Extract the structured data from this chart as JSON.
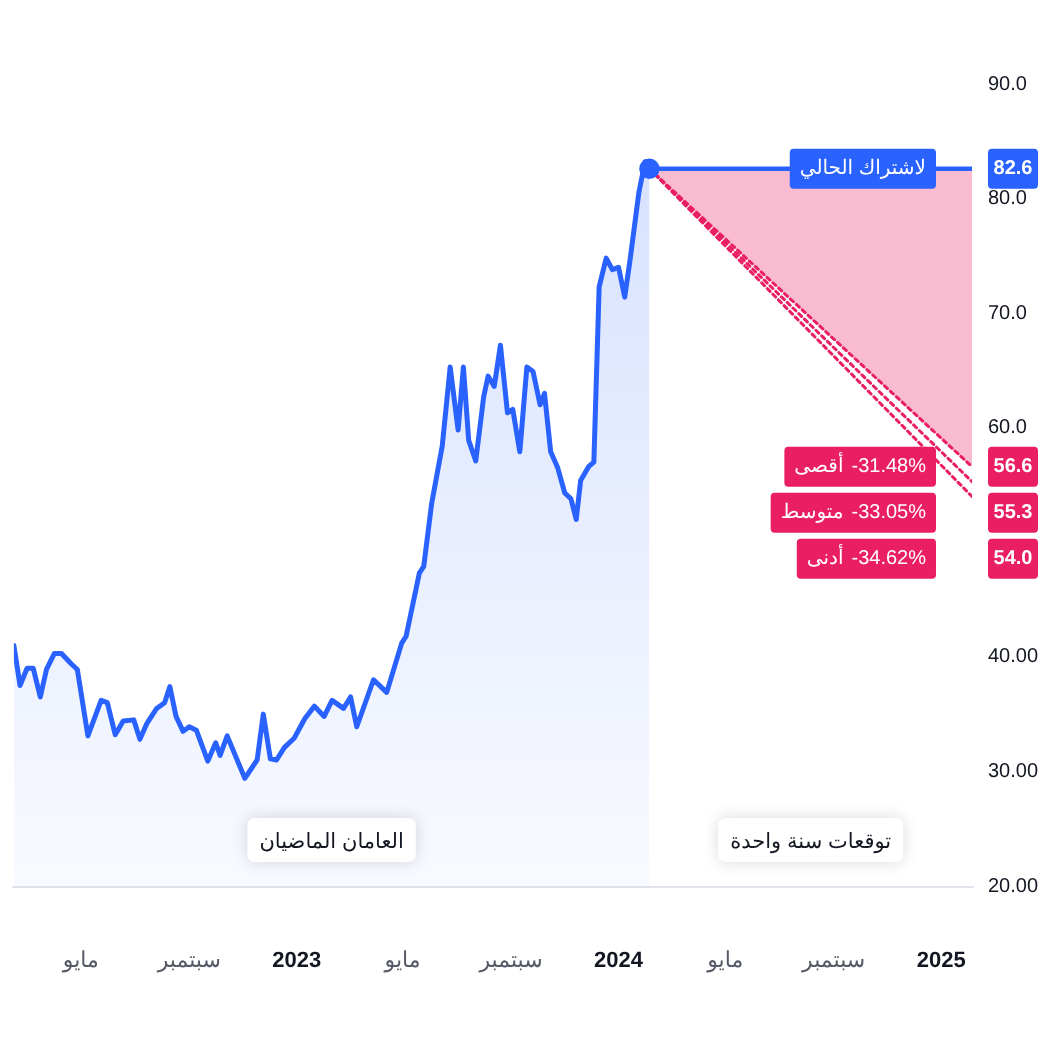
{
  "chart_data": {
    "type": "line",
    "xlim": [
      "2022-02-14",
      "2025-02-05"
    ],
    "xticks": [
      {
        "value": "2022-05",
        "label": "مايو"
      },
      {
        "value": "2022-09",
        "label": "سبتمبر"
      },
      "2023",
      {
        "value": "2023-05",
        "label": "مايو"
      },
      {
        "value": "2023-09",
        "label": "سبتمبر"
      },
      "2024",
      {
        "value": "2024-05",
        "label": "مايو"
      },
      {
        "value": "2024-09",
        "label": "سبتمبر"
      },
      "2025"
    ],
    "ylim": [
      20,
      90
    ],
    "yticks": [
      {
        "value": 20,
        "label": "20.00"
      },
      {
        "value": 30,
        "label": "30.00"
      },
      {
        "value": 40,
        "label": "40.00"
      },
      {
        "value": 60,
        "label": "60.0"
      },
      {
        "value": 70,
        "label": "70.0"
      },
      {
        "value": 80,
        "label": "80.0"
      },
      {
        "value": 90,
        "label": "90.0"
      }
    ],
    "grid": false,
    "legend": "right",
    "annotations": [
      "العامان الماضيان",
      "توقعات سنة واحدة",
      "-31.48%",
      "-33.05%",
      "-34.62%"
    ],
    "series": [
      {
        "type": "area",
        "color": "#2962ff",
        "x": [
          "2022-02-14",
          "2022-02-21",
          "2022-03-01",
          "2022-03-08",
          "2022-03-16",
          "2022-03-23",
          "2022-04-01",
          "2022-04-09",
          "2022-04-20",
          "2022-04-27",
          "2022-05-09",
          "2022-05-24",
          "2022-05-31",
          "2022-06-09",
          "2022-06-18",
          "2022-06-30",
          "2022-07-07",
          "2022-07-15",
          "2022-07-26",
          "2022-08-04",
          "2022-08-10",
          "2022-08-17",
          "2022-08-25",
          "2022-09-01",
          "2022-09-09",
          "2022-09-22",
          "2022-10-01",
          "2022-10-06",
          "2022-10-14",
          "2022-11-03",
          "2022-11-17",
          "2022-11-24",
          "2022-12-02",
          "2022-12-09",
          "2022-12-18",
          "2022-12-29",
          "2023-01-10",
          "2023-01-21",
          "2023-02-01",
          "2023-02-10",
          "2023-02-23",
          "2023-03-03",
          "2023-03-10",
          "2023-03-29",
          "2023-04-13",
          "2023-04-30",
          "2023-05-05",
          "2023-05-20",
          "2023-05-25",
          "2023-06-03",
          "2023-06-15",
          "2023-06-24",
          "2023-07-03",
          "2023-07-09",
          "2023-07-15",
          "2023-07-23",
          "2023-08-01",
          "2023-08-06",
          "2023-08-13",
          "2023-08-20",
          "2023-08-28",
          "2023-09-03",
          "2023-09-11",
          "2023-09-19",
          "2023-09-26",
          "2023-10-04",
          "2023-10-09",
          "2023-10-16",
          "2023-10-24",
          "2023-11-01",
          "2023-11-08",
          "2023-11-14",
          "2023-11-19",
          "2023-11-28",
          "2023-12-04",
          "2023-12-10",
          "2023-12-18",
          "2023-12-25",
          "2024-01-01",
          "2024-01-08",
          "2024-01-14",
          "2024-01-24",
          "2024-01-31",
          "2024-02-05"
        ],
        "values": [
          41.0,
          37.5,
          39.0,
          39.0,
          36.5,
          38.9,
          40.3,
          40.3,
          39.4,
          38.9,
          33.1,
          36.2,
          36.0,
          33.2,
          34.4,
          34.5,
          32.8,
          34.2,
          35.5,
          36.0,
          37.4,
          34.8,
          33.5,
          33.9,
          33.6,
          30.9,
          32.5,
          31.4,
          33.1,
          29.4,
          31.0,
          35.0,
          31.1,
          31.0,
          32.1,
          32.9,
          34.6,
          35.7,
          34.8,
          36.2,
          35.5,
          36.5,
          33.9,
          38.0,
          36.9,
          41.2,
          41.8,
          47.3,
          47.9,
          53.4,
          58.4,
          65.3,
          59.8,
          65.3,
          58.9,
          57.1,
          62.7,
          64.5,
          63.6,
          67.2,
          61.3,
          61.6,
          57.9,
          65.3,
          64.9,
          62.0,
          63.0,
          57.9,
          56.5,
          54.3,
          53.8,
          52.0,
          55.4,
          56.6,
          57.0,
          72.3,
          74.8,
          73.8,
          74.0,
          71.4,
          74.6,
          80.5,
          83.2,
          82.6
        ]
      },
      {
        "type": "scatter",
        "color": "#2962ff",
        "marker": "circle",
        "x": [
          "2024-02-05"
        ],
        "values": [
          82.6
        ]
      },
      {
        "type": "line",
        "name": "لاشتراك الحالي",
        "color": "#2962ff",
        "x": [
          "2024-02-05",
          "2025-02-05"
        ],
        "values": [
          82.6,
          82.6
        ],
        "value_labels": [
          null,
          "82.6"
        ]
      },
      {
        "type": "line",
        "name": "أقصى",
        "color": "#e91e63",
        "line_style": "dotted",
        "x": [
          "2024-02-05",
          "2025-02-05"
        ],
        "values": [
          82.6,
          56.6
        ],
        "lower": [
          82.6,
          56.6
        ],
        "upper": [
          82.6,
          82.6
        ],
        "value_labels": [
          null,
          "56.6"
        ]
      },
      {
        "type": "line",
        "name": "متوسط",
        "color": "#e91e63",
        "line_style": "dotted",
        "x": [
          "2024-02-05",
          "2025-02-05"
        ],
        "values": [
          82.6,
          55.3
        ],
        "value_labels": [
          null,
          "55.3"
        ]
      },
      {
        "type": "line",
        "name": "أدنى",
        "color": "#e91e63",
        "line_style": "dotted",
        "x": [
          "2024-02-05",
          "2025-02-05"
        ],
        "values": [
          82.6,
          54.0
        ],
        "value_labels": [
          null,
          "54.0"
        ]
      }
    ]
  }
}
